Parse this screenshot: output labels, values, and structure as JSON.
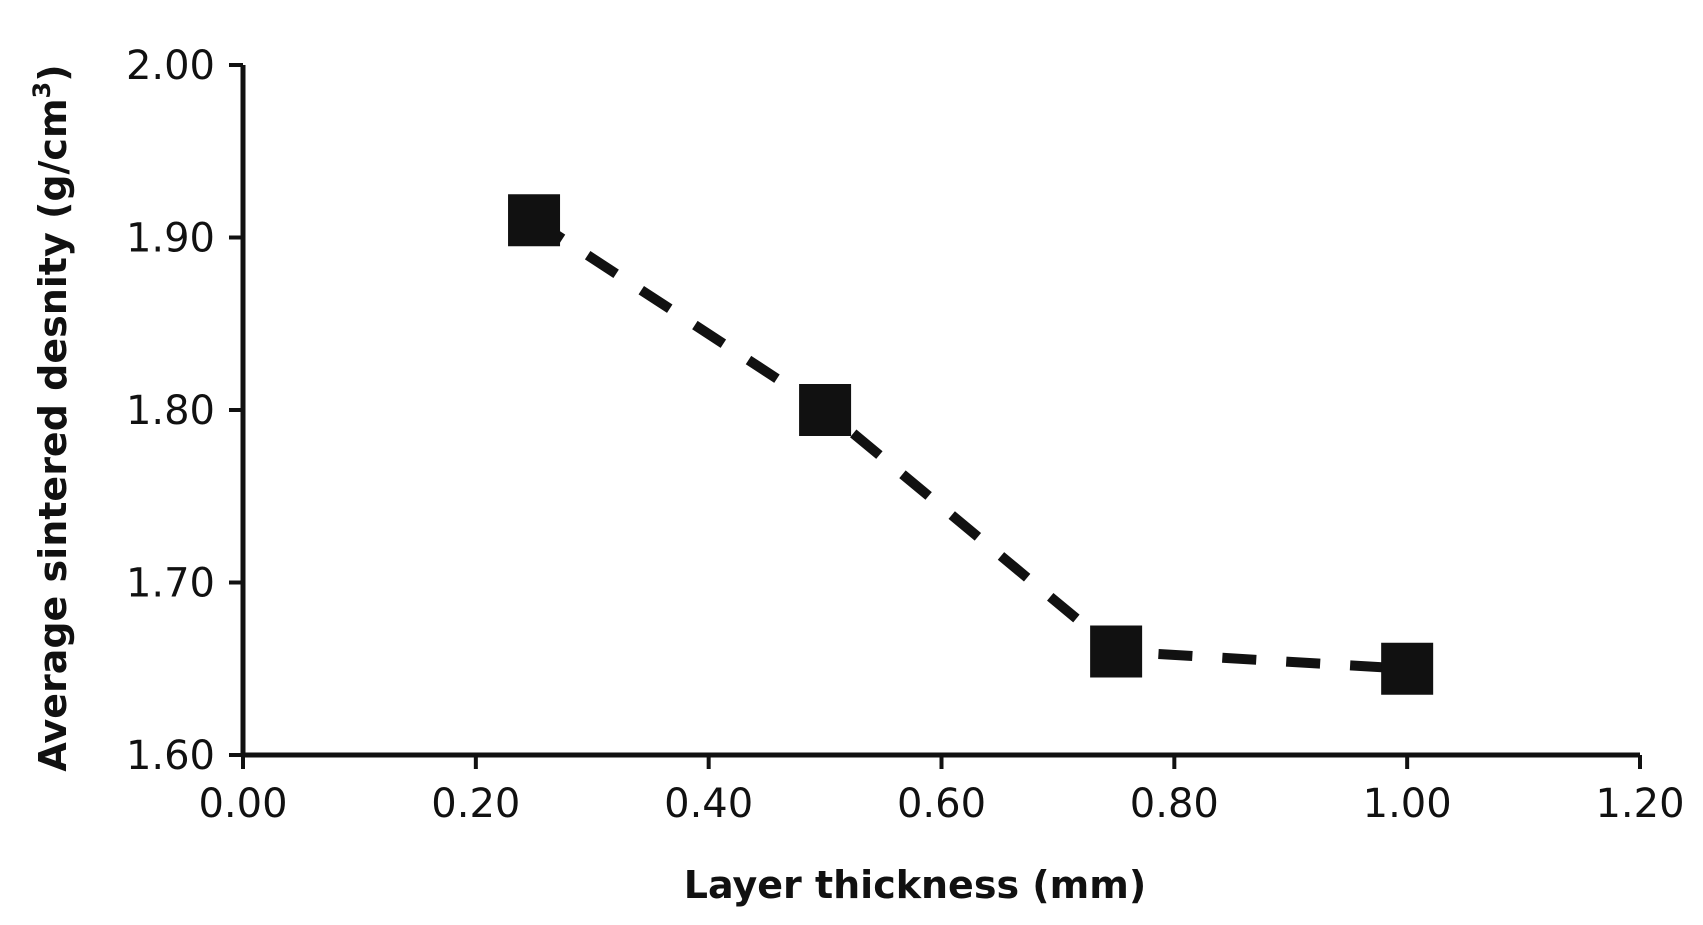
{
  "chart_data": {
    "type": "scatter",
    "title": "",
    "xlabel": "Layer thickness (mm)",
    "ylabel_main": "Average sintered desnity (g/cm",
    "ylabel_sup": "3",
    "ylabel_close": ")",
    "xlim": [
      0.0,
      1.2
    ],
    "ylim": [
      1.6,
      2.0
    ],
    "x_ticks": [
      "0.00",
      "0.20",
      "0.40",
      "0.60",
      "0.80",
      "1.00",
      "1.20"
    ],
    "y_ticks": [
      "1.60",
      "1.70",
      "1.80",
      "1.90",
      "2.00"
    ],
    "grid": false,
    "legend": "none",
    "marker": "square",
    "line_style": "dashed",
    "color": "#111111",
    "series": [
      {
        "x": [
          0.25,
          0.5,
          0.75,
          1.0
        ],
        "y": [
          1.91,
          1.8,
          1.66,
          1.65
        ]
      }
    ]
  }
}
